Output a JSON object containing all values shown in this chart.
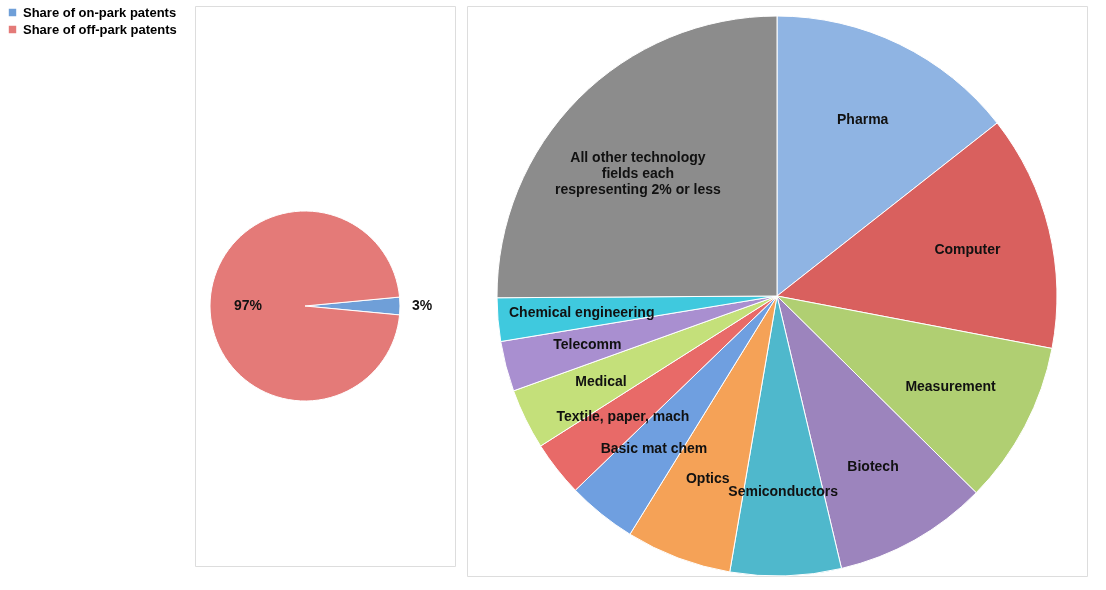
{
  "chart_data": [
    {
      "type": "pie",
      "categories": [
        "Share of on-park patents",
        "Share of off-park patents"
      ],
      "values": [
        3,
        97
      ],
      "colors": [
        "#6f9fd8",
        "#e47a78"
      ],
      "value_labels": [
        "3%",
        "97%"
      ],
      "legend": "left"
    },
    {
      "type": "pie",
      "categories": [
        "Pharma",
        "Computer",
        "Measurement",
        "Biotech",
        "Semiconductors",
        "Optics",
        "Basic mat chem",
        "Textile, paper, mach",
        "Medical",
        "Telecomm",
        "Chemical engineering",
        "All other technology fields each respresenting 2% or less"
      ],
      "values": [
        14.4,
        13.6,
        9.4,
        8.9,
        6.4,
        6.1,
        4.0,
        3.2,
        3.5,
        2.9,
        2.5,
        25.1
      ],
      "colors": [
        "#8fb4e3",
        "#d9605e",
        "#b0cf72",
        "#9c84bd",
        "#4fb8cc",
        "#f5a257",
        "#6f9fe0",
        "#e86a68",
        "#c4e07a",
        "#a98fd0",
        "#3fc9de",
        "#8c8c8c"
      ],
      "legend": false
    }
  ]
}
